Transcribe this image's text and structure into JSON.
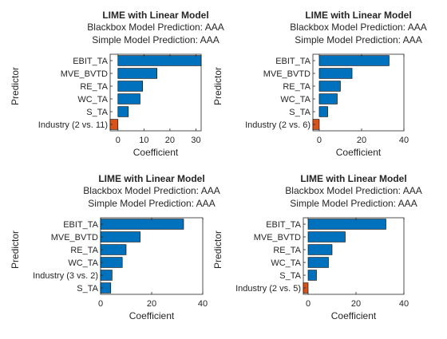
{
  "chart_data": [
    {
      "type": "bar",
      "orientation": "horizontal",
      "title": "LIME with Linear Model",
      "subtitle_lines": [
        "Blackbox Model Prediction: AAA",
        "Simple Model Prediction: AAA"
      ],
      "xlabel": "Coefficient",
      "ylabel": "Predictor",
      "xlim": [
        -3,
        32
      ],
      "xticks": [
        0,
        10,
        20,
        30
      ],
      "categories": [
        "EBIT_TA",
        "MVE_BVTD",
        "RE_TA",
        "WC_TA",
        "S_TA",
        "Industry (2 vs. 11)"
      ],
      "values": [
        32,
        15,
        9.5,
        8.5,
        4,
        -3
      ],
      "bar_colors": [
        "#0072BD",
        "#0072BD",
        "#0072BD",
        "#0072BD",
        "#0072BD",
        "#D95319"
      ],
      "grid": false
    },
    {
      "type": "bar",
      "orientation": "horizontal",
      "title": "LIME with Linear Model",
      "subtitle_lines": [
        "Blackbox Model Prediction: AAA",
        "Simple Model Prediction: AAA"
      ],
      "xlabel": "Coefficient",
      "ylabel": "Predictor",
      "xlim": [
        -3,
        40
      ],
      "xticks": [
        0,
        20,
        40
      ],
      "categories": [
        "EBIT_TA",
        "MVE_BVTD",
        "RE_TA",
        "WC_TA",
        "S_TA",
        "Industry (2 vs. 6)"
      ],
      "values": [
        33,
        15.5,
        10,
        8.5,
        4,
        -3
      ],
      "bar_colors": [
        "#0072BD",
        "#0072BD",
        "#0072BD",
        "#0072BD",
        "#0072BD",
        "#D95319"
      ],
      "grid": false
    },
    {
      "type": "bar",
      "orientation": "horizontal",
      "title": "LIME with Linear Model",
      "subtitle_lines": [
        "Blackbox Model Prediction: AAA",
        "Simple Model Prediction: AAA"
      ],
      "xlabel": "Coefficient",
      "ylabel": "Predictor",
      "xlim": [
        0,
        40
      ],
      "xticks": [
        0,
        20,
        40
      ],
      "categories": [
        "EBIT_TA",
        "MVE_BVTD",
        "RE_TA",
        "WC_TA",
        "Industry (3 vs. 2)",
        "S_TA"
      ],
      "values": [
        32.5,
        15.5,
        10,
        8.5,
        4.5,
        4
      ],
      "bar_colors": [
        "#0072BD",
        "#0072BD",
        "#0072BD",
        "#0072BD",
        "#0072BD",
        "#0072BD"
      ],
      "grid": false
    },
    {
      "type": "bar",
      "orientation": "horizontal",
      "title": "LIME with Linear Model",
      "subtitle_lines": [
        "Blackbox Model Prediction: AAA",
        "Simple Model Prediction: AAA"
      ],
      "xlabel": "Coefficient",
      "ylabel": "Predictor",
      "xlim": [
        -2,
        40
      ],
      "xticks": [
        0,
        20,
        40
      ],
      "categories": [
        "EBIT_TA",
        "MVE_BVTD",
        "RE_TA",
        "WC_TA",
        "S_TA",
        "Industry (2 vs. 5)"
      ],
      "values": [
        32.5,
        15.5,
        10,
        8.5,
        3.5,
        -2
      ],
      "bar_colors": [
        "#0072BD",
        "#0072BD",
        "#0072BD",
        "#0072BD",
        "#0072BD",
        "#D95319"
      ],
      "grid": false
    }
  ]
}
